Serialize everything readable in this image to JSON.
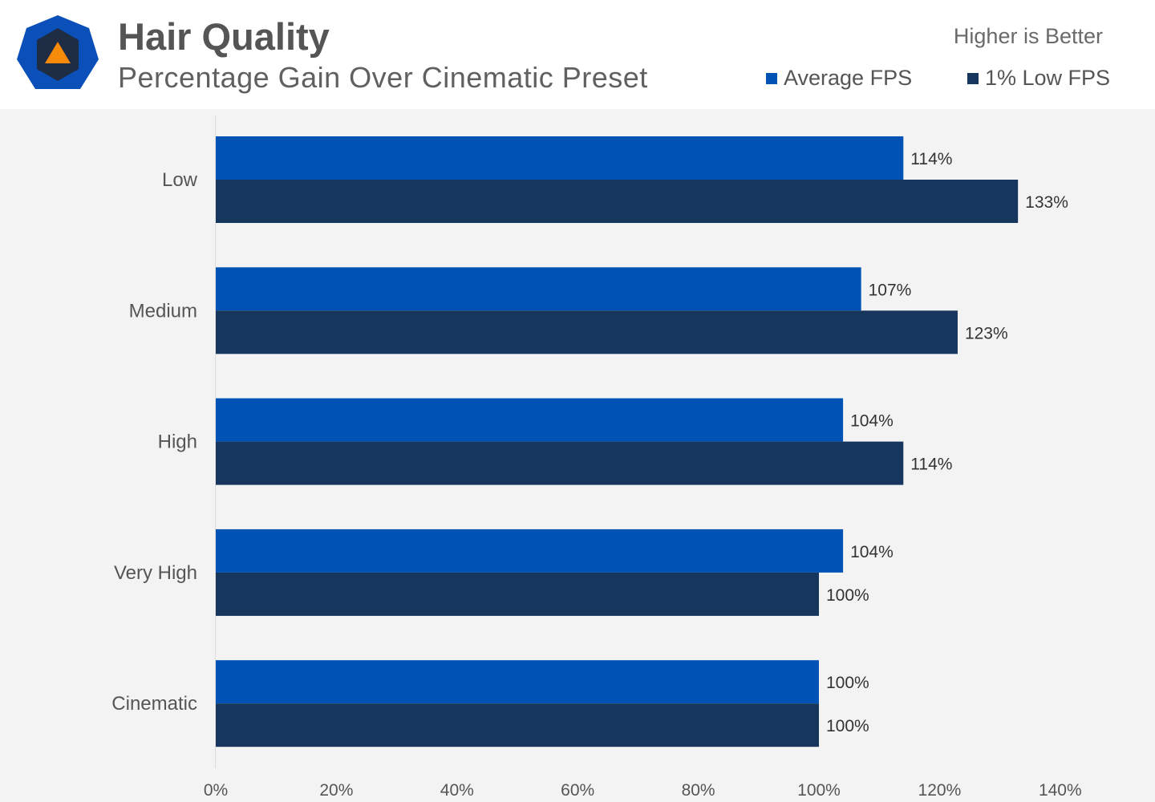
{
  "header": {
    "title": "Hair Quality",
    "subtitle": "Percentage Gain Over Cinematic Preset",
    "note": "Higher is Better",
    "logo_icon": "hexagon-triangle-logo-icon"
  },
  "legend": [
    {
      "label": "Average FPS",
      "color": "#0052b4"
    },
    {
      "label": "1% Low FPS",
      "color": "#17365e"
    }
  ],
  "chart_data": {
    "type": "bar",
    "orientation": "horizontal",
    "title": "Hair Quality",
    "subtitle": "Percentage Gain Over Cinematic Preset",
    "xlabel": "",
    "ylabel": "",
    "xlim": [
      0,
      140
    ],
    "x_ticks": [
      "0%",
      "20%",
      "40%",
      "60%",
      "80%",
      "100%",
      "120%",
      "140%"
    ],
    "x_tick_values": [
      0,
      20,
      40,
      60,
      80,
      100,
      120,
      140
    ],
    "categories": [
      "Low",
      "Medium",
      "High",
      "Very High",
      "Cinematic"
    ],
    "series": [
      {
        "name": "Average FPS",
        "color": "#0052b4",
        "values": [
          114,
          107,
          104,
          104,
          100
        ],
        "labels": [
          "114%",
          "107%",
          "104%",
          "104%",
          "100%"
        ]
      },
      {
        "name": "1% Low FPS",
        "color": "#17365e",
        "values": [
          133,
          123,
          114,
          100,
          100
        ],
        "labels": [
          "133%",
          "123%",
          "114%",
          "100%",
          "100%"
        ]
      }
    ],
    "grid": false,
    "legend_position": "top-right"
  }
}
